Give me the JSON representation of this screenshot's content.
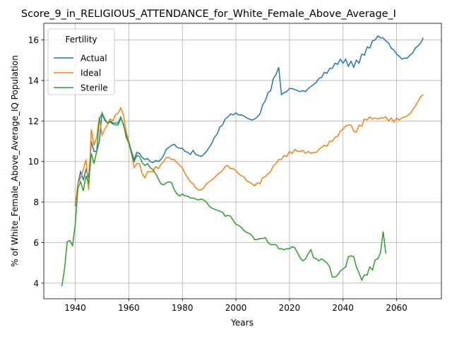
{
  "chart_data": {
    "type": "line",
    "title": "Score_9_in_RELIGIOUS_ATTENDANCE_for_White_Female_Above_Average_I",
    "x_label": "Years",
    "y_label": "% of White_Female_Above_Average_IQ Population",
    "legend_title": "Fertility",
    "legend_loc": "upper left",
    "grid": true,
    "xlim": [
      1928.25,
      2076.75
    ],
    "ylim": [
      3.23,
      16.82
    ],
    "xticks": [
      1940,
      1960,
      1980,
      2000,
      2020,
      2040,
      2060
    ],
    "yticks": [
      4,
      6,
      8,
      10,
      12,
      14,
      16
    ],
    "x": [
      1935,
      1936,
      1937,
      1938,
      1939,
      1940,
      1941,
      1942,
      1943,
      1944,
      1945,
      1946,
      1947,
      1948,
      1949,
      1950,
      1951,
      1952,
      1953,
      1954,
      1955,
      1956,
      1957,
      1958,
      1959,
      1960,
      1961,
      1962,
      1963,
      1964,
      1965,
      1966,
      1967,
      1968,
      1969,
      1970,
      1971,
      1972,
      1973,
      1974,
      1975,
      1976,
      1977,
      1978,
      1979,
      1980,
      1981,
      1982,
      1983,
      1984,
      1985,
      1986,
      1987,
      1988,
      1989,
      1990,
      1991,
      1992,
      1993,
      1994,
      1995,
      1996,
      1997,
      1998,
      1999,
      2000,
      2001,
      2002,
      2003,
      2004,
      2005,
      2006,
      2007,
      2008,
      2009,
      2010,
      2011,
      2012,
      2013,
      2014,
      2015,
      2016,
      2017,
      2018,
      2019,
      2020,
      2021,
      2022,
      2023,
      2024,
      2025,
      2026,
      2027,
      2028,
      2029,
      2030,
      2031,
      2032,
      2033,
      2034,
      2035,
      2036,
      2037,
      2038,
      2039,
      2040,
      2041,
      2042,
      2043,
      2044,
      2045,
      2046,
      2047,
      2048,
      2049,
      2050,
      2051,
      2052,
      2053,
      2054,
      2055,
      2056,
      2057,
      2058,
      2059,
      2060,
      2061,
      2062,
      2063,
      2064,
      2065,
      2066,
      2067,
      2068,
      2069,
      2070
    ],
    "series": [
      {
        "name": "Actual",
        "color": "#1f77b4",
        "values": [
          null,
          null,
          null,
          null,
          null,
          7.8,
          8.9,
          9.5,
          9.1,
          9.6,
          9.2,
          11.0,
          10.5,
          10.5,
          11.0,
          12.4,
          12.1,
          11.9,
          12.0,
          11.9,
          11.9,
          11.9,
          12.2,
          11.8,
          11.3,
          11.0,
          10.5,
          10.1,
          10.45,
          10.4,
          10.2,
          10.1,
          10.15,
          10.0,
          9.95,
          10.05,
          10.0,
          10.1,
          10.3,
          10.6,
          10.7,
          10.8,
          10.85,
          10.7,
          10.65,
          10.65,
          10.5,
          10.45,
          10.35,
          10.55,
          10.35,
          10.3,
          10.25,
          10.35,
          10.5,
          10.7,
          10.9,
          11.2,
          11.35,
          11.7,
          11.8,
          12.1,
          12.2,
          12.35,
          12.3,
          12.4,
          12.3,
          12.3,
          12.25,
          12.15,
          12.1,
          12.05,
          12.1,
          12.2,
          12.35,
          12.8,
          13.0,
          13.4,
          13.5,
          14.1,
          14.3,
          14.65,
          13.3,
          13.4,
          13.45,
          13.6,
          13.6,
          13.55,
          13.5,
          13.45,
          13.5,
          13.45,
          13.6,
          13.7,
          13.8,
          13.9,
          14.1,
          14.15,
          14.4,
          14.35,
          14.6,
          14.6,
          14.85,
          14.8,
          15.05,
          14.85,
          15.05,
          14.7,
          14.95,
          14.65,
          15.0,
          14.85,
          15.3,
          15.25,
          15.65,
          15.6,
          15.95,
          16.0,
          16.2,
          16.1,
          16.1,
          15.95,
          15.85,
          15.6,
          15.5,
          15.3,
          15.2,
          15.05,
          15.1,
          15.1,
          15.25,
          15.35,
          15.6,
          15.7,
          15.85,
          16.1
        ]
      },
      {
        "name": "Ideal",
        "color": "#ff7f0e",
        "values": [
          null,
          null,
          null,
          null,
          null,
          7.9,
          8.9,
          9.2,
          9.6,
          10.1,
          8.6,
          11.6,
          10.8,
          11.2,
          12.2,
          11.3,
          11.6,
          11.8,
          12.1,
          12.0,
          12.3,
          12.4,
          12.65,
          12.3,
          11.5,
          11.0,
          10.4,
          9.7,
          9.9,
          9.9,
          9.4,
          9.2,
          9.5,
          9.5,
          9.5,
          9.75,
          9.65,
          9.85,
          10.0,
          10.2,
          10.2,
          10.1,
          10.1,
          9.95,
          9.8,
          9.7,
          9.4,
          9.2,
          9.0,
          8.9,
          8.7,
          8.6,
          8.6,
          8.7,
          8.9,
          9.0,
          9.1,
          9.2,
          9.35,
          9.45,
          9.55,
          9.75,
          9.8,
          9.65,
          9.65,
          9.55,
          9.4,
          9.3,
          9.25,
          9.05,
          9.0,
          8.9,
          8.8,
          8.95,
          8.9,
          9.2,
          9.25,
          9.4,
          9.5,
          9.8,
          9.9,
          10.1,
          10.1,
          10.3,
          10.25,
          10.5,
          10.4,
          10.6,
          10.5,
          10.5,
          10.55,
          10.4,
          10.5,
          10.4,
          10.45,
          10.45,
          10.6,
          10.7,
          10.8,
          10.75,
          11.0,
          11.0,
          11.2,
          11.25,
          11.5,
          11.6,
          11.75,
          11.8,
          11.8,
          11.5,
          11.45,
          11.8,
          11.75,
          12.1,
          12.05,
          12.2,
          12.1,
          12.15,
          12.1,
          12.15,
          12.15,
          12.2,
          12.0,
          12.15,
          11.95,
          12.15,
          12.05,
          12.15,
          12.2,
          12.25,
          12.35,
          12.55,
          12.75,
          12.95,
          13.2,
          13.3
        ]
      },
      {
        "name": "Sterile",
        "color": "#2ca02c",
        "values": [
          3.85,
          4.7,
          6.05,
          6.1,
          5.85,
          6.9,
          8.7,
          9.0,
          8.55,
          9.3,
          8.9,
          10.4,
          9.9,
          10.5,
          12.1,
          12.35,
          12.05,
          11.9,
          11.95,
          11.85,
          11.8,
          11.8,
          12.15,
          11.85,
          11.2,
          10.9,
          10.4,
          10.0,
          10.3,
          10.25,
          9.95,
          9.8,
          9.9,
          9.7,
          9.6,
          9.4,
          9.15,
          8.9,
          8.85,
          8.95,
          9.0,
          8.95,
          8.6,
          8.4,
          8.3,
          8.4,
          8.3,
          8.3,
          8.2,
          8.2,
          8.15,
          8.1,
          8.15,
          8.1,
          8.0,
          7.8,
          7.7,
          7.65,
          7.6,
          7.55,
          7.5,
          7.3,
          7.35,
          7.3,
          7.1,
          6.9,
          6.85,
          6.75,
          6.6,
          6.5,
          6.45,
          6.35,
          6.15,
          6.15,
          6.2,
          6.2,
          6.25,
          6.0,
          5.9,
          5.9,
          5.9,
          5.7,
          5.7,
          5.65,
          5.7,
          5.7,
          5.8,
          5.75,
          5.5,
          5.25,
          5.1,
          5.2,
          5.45,
          5.65,
          5.25,
          5.2,
          5.1,
          5.2,
          5.1,
          5.0,
          4.8,
          4.3,
          4.3,
          4.4,
          4.6,
          4.7,
          4.8,
          5.3,
          5.35,
          5.3,
          4.8,
          4.5,
          4.15,
          4.4,
          4.4,
          4.8,
          4.65,
          5.15,
          5.2,
          5.5,
          6.55,
          5.45,
          null,
          null,
          null,
          null,
          null,
          null,
          null,
          null,
          null,
          null,
          null,
          null,
          null,
          null
        ]
      }
    ]
  }
}
